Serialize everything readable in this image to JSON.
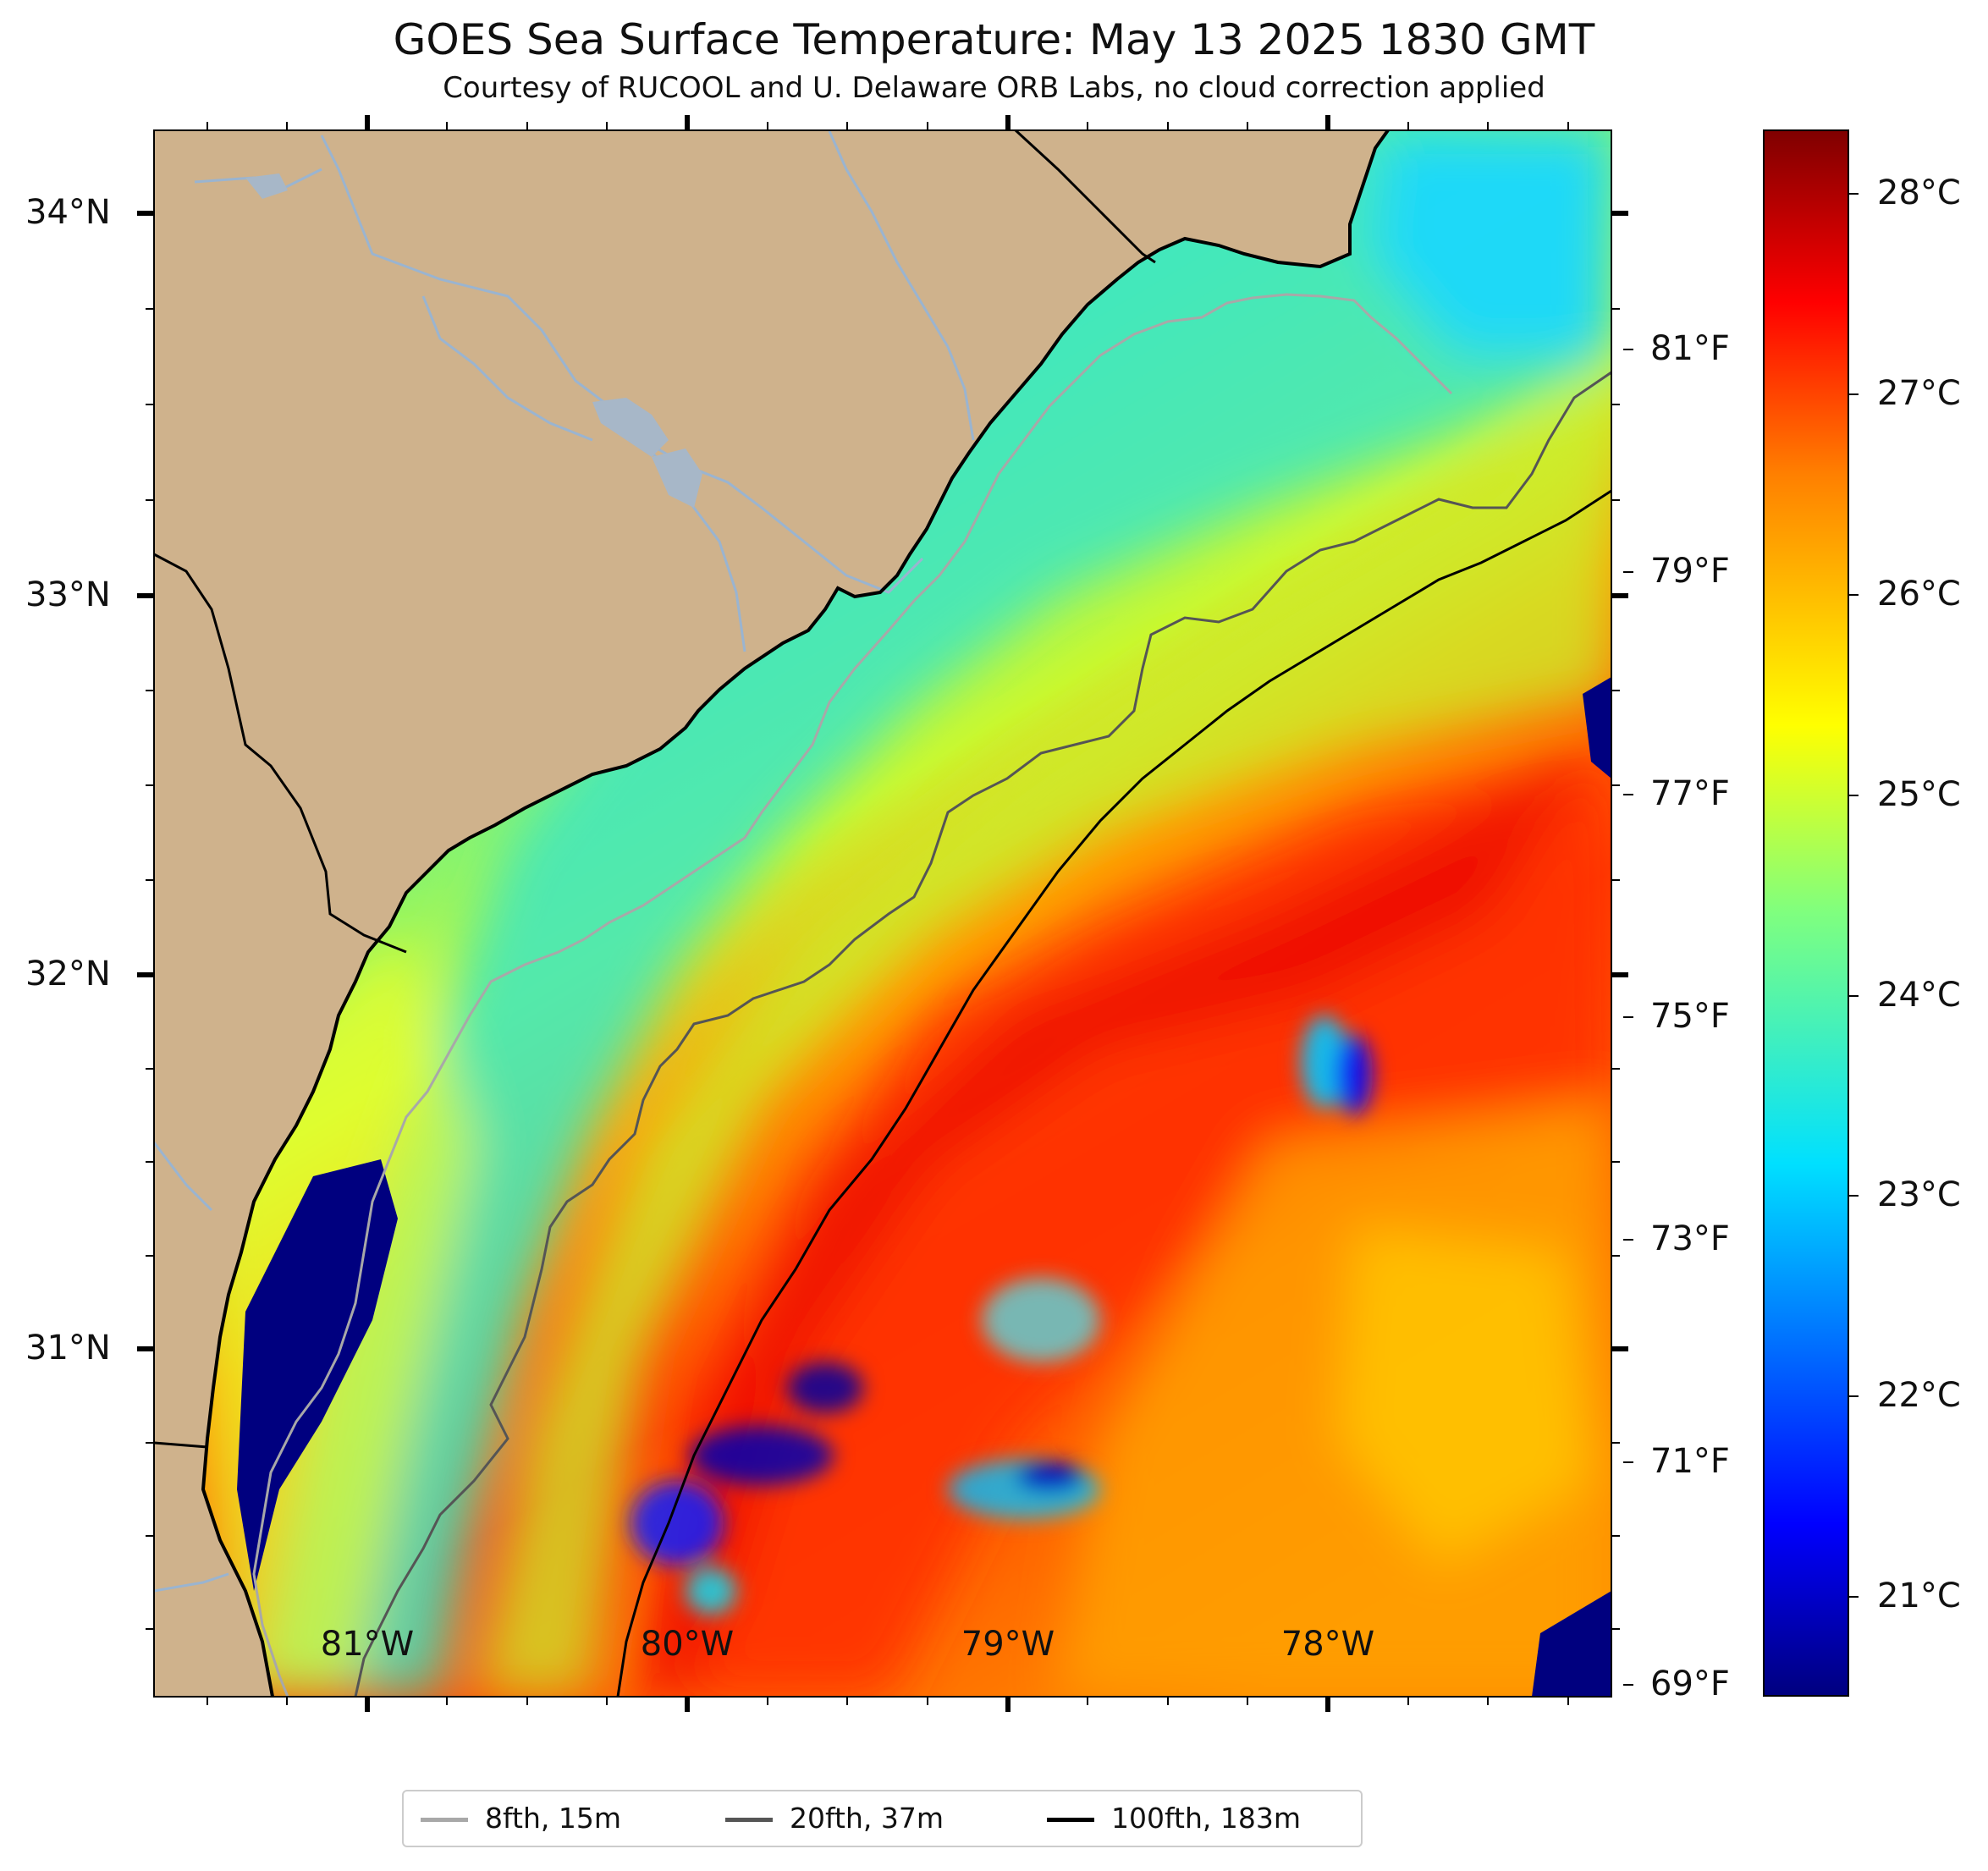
{
  "title": "GOES Sea Surface Temperature: May 13 2025 1830 GMT",
  "subtitle": "Courtesy of RUCOOL and U. Delaware ORB Labs, no cloud correction applied",
  "colors": {
    "land": "#cfb28c",
    "river": "#9ab4d0",
    "coast": "#000000",
    "isobath_8fth": "#a8a8a8",
    "isobath_20fth": "#555555",
    "isobath_100fth": "#000000",
    "cold_patch": "#00007f"
  },
  "axes": {
    "lat_labels": [
      "34°N",
      "33°N",
      "32°N",
      "31°N"
    ],
    "lon_labels": [
      "81°W",
      "80°W",
      "79°W",
      "78°W"
    ]
  },
  "colorbar": {
    "celsius_labels": [
      "28°C",
      "27°C",
      "26°C",
      "25°C",
      "24°C",
      "23°C",
      "22°C",
      "21°C"
    ],
    "fahrenheit_labels": [
      "81°F",
      "79°F",
      "77°F",
      "75°F",
      "73°F",
      "71°F",
      "69°F"
    ],
    "colormap": "jet",
    "range_c": [
      20.5,
      28.3
    ]
  },
  "legend": [
    {
      "label": "8fth, 15m",
      "color": "#a8a8a8"
    },
    {
      "label": "20fth, 37m",
      "color": "#555555"
    },
    {
      "label": "100fth, 183m",
      "color": "#000000"
    }
  ]
}
